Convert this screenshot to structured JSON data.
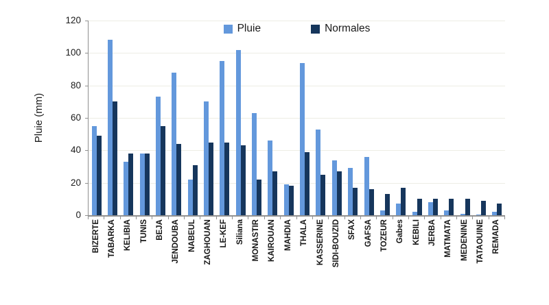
{
  "colors": {
    "pluie": "#6398DC",
    "normales": "#16365C",
    "gridline": "#EDEDE4",
    "axis": "#8F8F8F",
    "text": "#1A1A1A"
  },
  "chart_data": {
    "type": "bar",
    "title": "",
    "xlabel": "",
    "ylabel": "Pluie (mm)",
    "ylim": [
      0,
      120
    ],
    "yticks": [
      0,
      20,
      40,
      60,
      80,
      100,
      120
    ],
    "grid": true,
    "legend_position": "top-center-inside",
    "categories": [
      "BIZERTE",
      "TABARKA",
      "KELIBIA",
      "TUNIS",
      "BEJA",
      "JENDOUBA",
      "NABEUL",
      "ZAGHOUAN",
      "LE-KEF",
      "Siliana",
      "MONASTIR",
      "KAIROUAN",
      "MAHDIA",
      "THALA",
      "KASSERINE",
      "SIDI-BOUZID",
      "SFAX",
      "GAFSA",
      "TOZEUR",
      "Gabes",
      "KEBILI",
      "JERBA",
      "MATMATA",
      "MEDENINE",
      "TATAOUINE",
      "REMADA"
    ],
    "series": [
      {
        "name": "Pluie",
        "color": "#6398DC",
        "values": [
          55,
          108,
          33,
          38,
          73,
          88,
          22,
          70,
          95,
          102,
          63,
          46,
          19,
          94,
          53,
          34,
          29,
          36,
          3,
          7,
          2,
          8,
          3,
          1,
          0.5,
          2
        ]
      },
      {
        "name": "Normales",
        "color": "#16365C",
        "values": [
          49,
          70,
          38,
          38,
          55,
          44,
          31,
          45,
          45,
          43,
          22,
          27,
          18,
          39,
          25,
          27,
          17,
          16,
          13,
          17,
          10,
          10,
          10,
          10,
          9,
          7
        ]
      }
    ]
  }
}
